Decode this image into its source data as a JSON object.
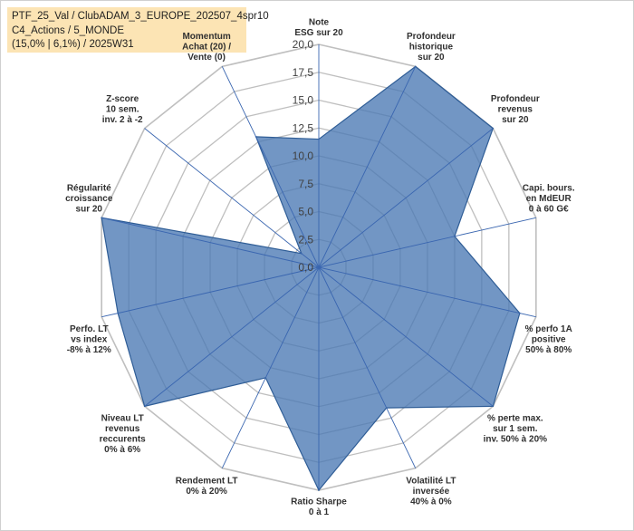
{
  "header": {
    "line1": "PTF_25_Val / ClubADAM_3_EUROPE_202507_4spr10",
    "line2": "C4_Actions / 5_MONDE",
    "line3": "(15,0% | 6,1%) / 2025W31"
  },
  "colors": {
    "fill": "#4a78b4",
    "stroke": "#2f5d96",
    "grid": "#bfbfbf",
    "spoke": "#3a66b0",
    "axis_label": "#303030"
  },
  "chart_data": {
    "type": "radar",
    "rmax": 20,
    "tick_values": [
      0,
      2.5,
      5,
      7.5,
      10,
      12.5,
      15,
      17.5,
      20
    ],
    "tick_labels": [
      "0,0",
      "2,5",
      "5,0",
      "7,5",
      "10,0",
      "12,5",
      "15,0",
      "17,5",
      "20,0"
    ],
    "axes": [
      {
        "label": [
          "Note",
          "ESG sur 20"
        ],
        "value": 11.5
      },
      {
        "label": [
          "Profondeur",
          "historique",
          "sur 20"
        ],
        "value": 20
      },
      {
        "label": [
          "Profondeur",
          "revenus",
          "sur 20"
        ],
        "value": 20
      },
      {
        "label": [
          "Capi. bours.",
          "en MdEUR",
          "0 à 60 G€"
        ],
        "value": 12.5
      },
      {
        "label": [
          "% perfo 1A",
          "positive",
          "50% à 80%"
        ],
        "value": 18.5
      },
      {
        "label": [
          "% perte max.",
          "sur 1 sem.",
          "inv. 50% à 20%"
        ],
        "value": 20
      },
      {
        "label": [
          "Volatilité LT",
          "inversée",
          "40% à 0%"
        ],
        "value": 14
      },
      {
        "label": [
          "Ratio Sharpe",
          "0 à 1"
        ],
        "value": 20
      },
      {
        "label": [
          "Rendement LT",
          "0% à 20%"
        ],
        "value": 11
      },
      {
        "label": [
          "Niveau LT",
          "revenus",
          "reccurents",
          "0% à 6%"
        ],
        "value": 20
      },
      {
        "label": [
          "Perfo. LT",
          "vs index",
          "-8% à 12%"
        ],
        "value": 18.5
      },
      {
        "label": [
          "Régularité",
          "croissance",
          "sur 20"
        ],
        "value": 20
      },
      {
        "label": [
          "Z-score",
          "10 sem.",
          "inv. 2 à -2"
        ],
        "value": 2
      },
      {
        "label": [
          "Momentum",
          "Achat (20) /",
          "Vente (0)"
        ],
        "value": 13
      }
    ]
  }
}
